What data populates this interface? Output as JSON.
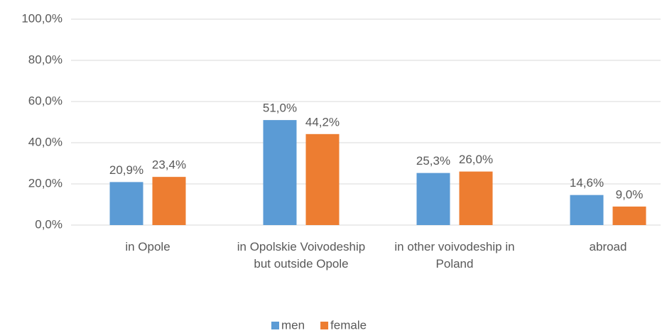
{
  "chart_data": {
    "type": "bar",
    "categories": [
      "in Opole",
      "in Opolskie Voivodeship but outside Opole",
      "in other voivodeship in Poland",
      "abroad"
    ],
    "series": [
      {
        "name": "men",
        "color": "#5b9bd5",
        "values": [
          20.9,
          51.0,
          25.3,
          14.6
        ],
        "value_labels": [
          "20,9%",
          "51,0%",
          "25,3%",
          "14,6%"
        ]
      },
      {
        "name": "female",
        "color": "#ed7d31",
        "values": [
          23.4,
          44.2,
          26.0,
          9.0
        ],
        "value_labels": [
          "23,4%",
          "44,2%",
          "26,0%",
          "9,0%"
        ]
      }
    ],
    "ylim": [
      0,
      100
    ],
    "yticks": [
      {
        "value": 0,
        "label": "0,0%"
      },
      {
        "value": 20,
        "label": "20,0%"
      },
      {
        "value": 40,
        "label": "40,0%"
      },
      {
        "value": 60,
        "label": "60,0%"
      },
      {
        "value": 80,
        "label": "80,0%"
      },
      {
        "value": 100,
        "label": "100,0%"
      }
    ],
    "grid": true,
    "legend": "bottom"
  }
}
